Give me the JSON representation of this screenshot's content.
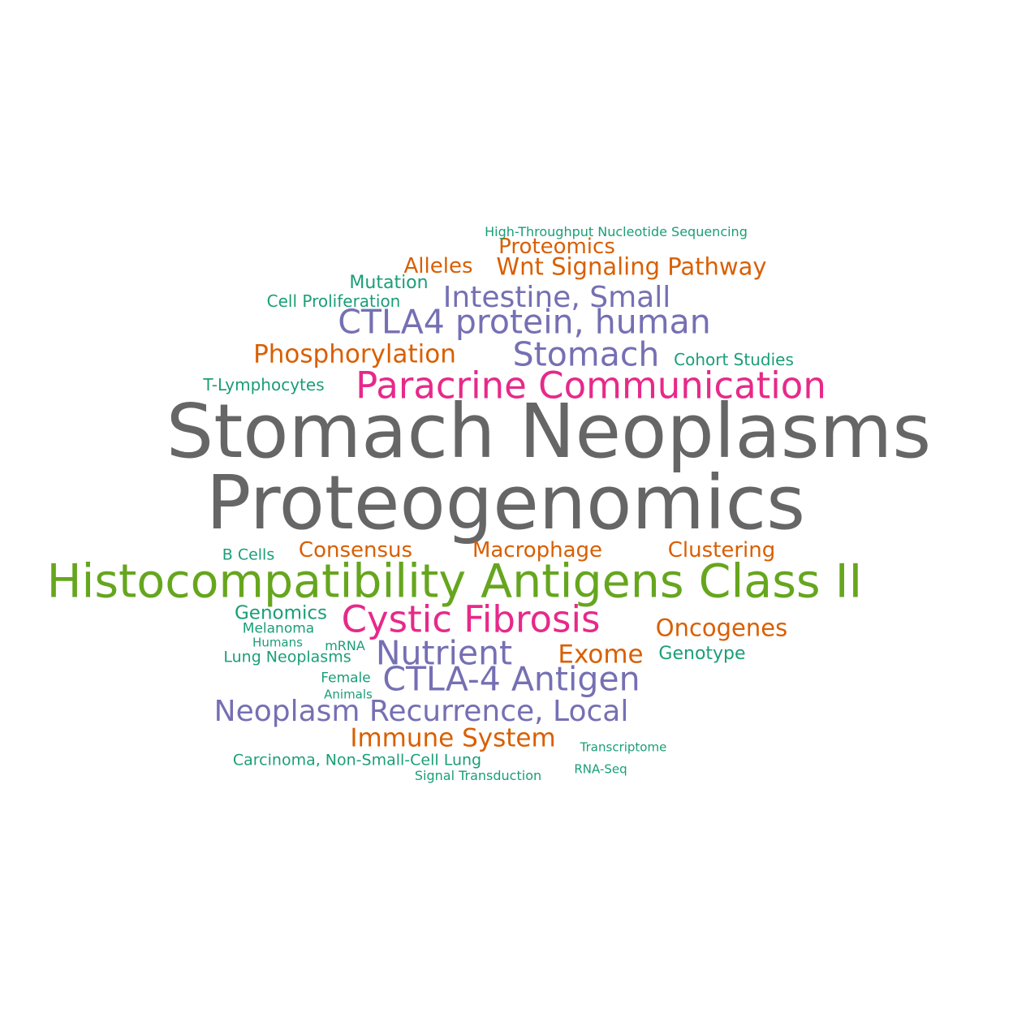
{
  "palette": {
    "gray": "#666666",
    "green": "#66a61e",
    "pink": "#e7298a",
    "purple": "#7570b3",
    "orange": "#d95f02",
    "teal": "#1b9e77"
  },
  "words": [
    {
      "id": "stomach-neoplasms",
      "text": "Stomach Neoplasms",
      "color": "#666666"
    },
    {
      "id": "proteogenomics",
      "text": "Proteogenomics",
      "color": "#666666"
    },
    {
      "id": "histocompatibility",
      "text": "Histocompatibility Antigens Class II",
      "color": "#66a61e"
    },
    {
      "id": "paracrine",
      "text": "Paracrine Communication",
      "color": "#e7298a"
    },
    {
      "id": "cystic-fibrosis",
      "text": "Cystic Fibrosis",
      "color": "#e7298a"
    },
    {
      "id": "ctla4-protein",
      "text": "CTLA4 protein, human",
      "color": "#7570b3"
    },
    {
      "id": "stomach",
      "text": "Stomach",
      "color": "#7570b3"
    },
    {
      "id": "intestine-small",
      "text": "Intestine, Small",
      "color": "#7570b3"
    },
    {
      "id": "nutrient",
      "text": "Nutrient",
      "color": "#7570b3"
    },
    {
      "id": "ctla4-antigen",
      "text": "CTLA-4 Antigen",
      "color": "#7570b3"
    },
    {
      "id": "neoplasm-recurrence",
      "text": "Neoplasm Recurrence, Local",
      "color": "#7570b3"
    },
    {
      "id": "wnt",
      "text": "Wnt Signaling Pathway",
      "color": "#d95f02"
    },
    {
      "id": "phosphorylation",
      "text": "Phosphorylation",
      "color": "#d95f02"
    },
    {
      "id": "proteomics",
      "text": "Proteomics",
      "color": "#d95f02"
    },
    {
      "id": "alleles",
      "text": "Alleles",
      "color": "#d95f02"
    },
    {
      "id": "consensus",
      "text": "Consensus",
      "color": "#d95f02"
    },
    {
      "id": "macrophage",
      "text": "Macrophage",
      "color": "#d95f02"
    },
    {
      "id": "clustering",
      "text": "Clustering",
      "color": "#d95f02"
    },
    {
      "id": "oncogenes",
      "text": "Oncogenes",
      "color": "#d95f02"
    },
    {
      "id": "exome",
      "text": "Exome",
      "color": "#d95f02"
    },
    {
      "id": "immune-system",
      "text": "Immune System",
      "color": "#d95f02"
    },
    {
      "id": "hts",
      "text": "High-Throughput Nucleotide Sequencing",
      "color": "#1b9e77"
    },
    {
      "id": "mutation",
      "text": "Mutation",
      "color": "#1b9e77"
    },
    {
      "id": "cell-proliferation",
      "text": "Cell Proliferation",
      "color": "#1b9e77"
    },
    {
      "id": "cohort-studies",
      "text": "Cohort Studies",
      "color": "#1b9e77"
    },
    {
      "id": "t-lymphocytes",
      "text": "T-Lymphocytes",
      "color": "#1b9e77"
    },
    {
      "id": "b-cells",
      "text": "B Cells",
      "color": "#1b9e77"
    },
    {
      "id": "genomics",
      "text": "Genomics",
      "color": "#1b9e77"
    },
    {
      "id": "melanoma",
      "text": "Melanoma",
      "color": "#1b9e77"
    },
    {
      "id": "humans",
      "text": "Humans",
      "color": "#1b9e77"
    },
    {
      "id": "mrna",
      "text": "mRNA",
      "color": "#1b9e77"
    },
    {
      "id": "lung-neoplasms",
      "text": "Lung Neoplasms",
      "color": "#1b9e77"
    },
    {
      "id": "genotype",
      "text": "Genotype",
      "color": "#1b9e77"
    },
    {
      "id": "female",
      "text": "Female",
      "color": "#1b9e77"
    },
    {
      "id": "animals",
      "text": "Animals",
      "color": "#1b9e77"
    },
    {
      "id": "transcriptome",
      "text": "Transcriptome",
      "color": "#1b9e77"
    },
    {
      "id": "nsclc",
      "text": "Carcinoma, Non-Small-Cell Lung",
      "color": "#1b9e77"
    },
    {
      "id": "rna-seq",
      "text": "RNA-Seq",
      "color": "#1b9e77"
    },
    {
      "id": "signal-transduction",
      "text": "Signal Transduction",
      "color": "#1b9e77"
    }
  ]
}
